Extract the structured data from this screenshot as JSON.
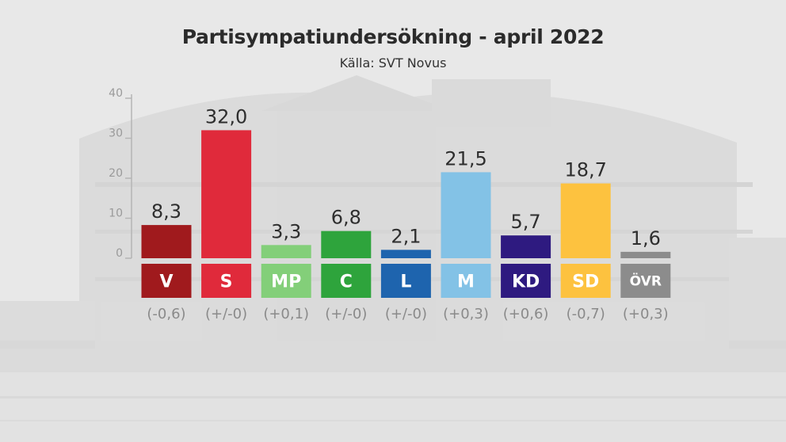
{
  "chart_data": {
    "type": "bar",
    "title": "Partisympatiundersökning - april 2022",
    "subtitle": "Källa: SVT Novus",
    "ylim": [
      0,
      40
    ],
    "yticks": [
      "0",
      "10",
      "20",
      "30",
      "40"
    ],
    "categories": [
      "V",
      "S",
      "MP",
      "C",
      "L",
      "M",
      "KD",
      "SD",
      "ÖVR"
    ],
    "values": [
      8.3,
      32.0,
      3.3,
      6.8,
      2.1,
      21.5,
      5.7,
      18.7,
      1.6
    ],
    "value_labels": [
      "8,3",
      "32,0",
      "3,3",
      "6,8",
      "2,1",
      "21,5",
      "5,7",
      "18,7",
      "1,6"
    ],
    "changes": [
      "(-0,6)",
      "(+/-0)",
      "(+0,1)",
      "(+/-0)",
      "(+/-0)",
      "(+0,3)",
      "(+0,6)",
      "(-0,7)",
      "(+0,3)"
    ],
    "colors": [
      "#a01a1d",
      "#e02a3b",
      "#83cf79",
      "#2ea43c",
      "#1e64ae",
      "#83c2e6",
      "#2e1a80",
      "#fdc23f",
      "#8c8c8c"
    ],
    "grid": false
  }
}
